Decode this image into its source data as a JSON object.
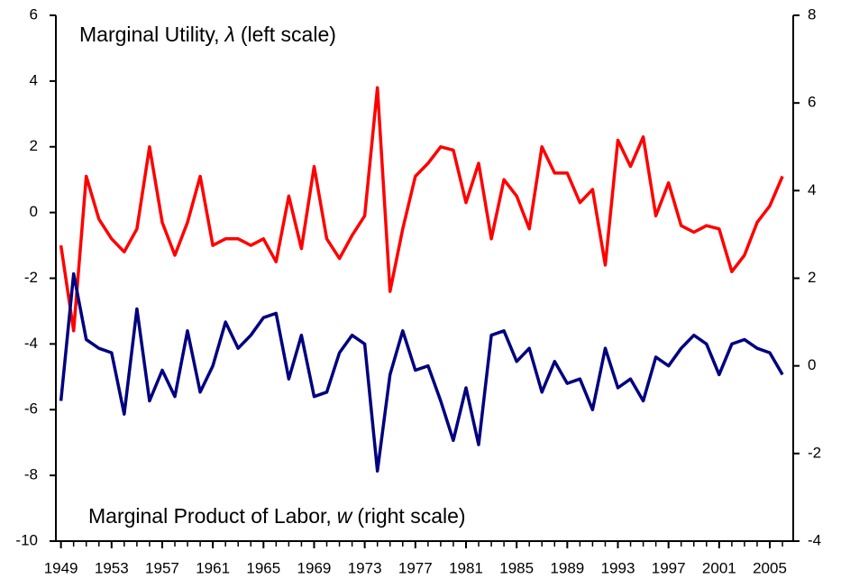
{
  "chart_data": {
    "type": "line",
    "annotations": [
      {
        "text_before": "Marginal Utility,",
        "symbol": "λ",
        "text_after": "(left scale)"
      },
      {
        "text_before": "Marginal Product of Labor,",
        "symbol": "w",
        "text_after": "(right scale)"
      }
    ],
    "x": [
      1949,
      1950,
      1951,
      1952,
      1953,
      1954,
      1955,
      1956,
      1957,
      1958,
      1959,
      1960,
      1961,
      1962,
      1963,
      1964,
      1965,
      1966,
      1967,
      1968,
      1969,
      1970,
      1971,
      1972,
      1973,
      1974,
      1975,
      1976,
      1977,
      1978,
      1979,
      1980,
      1981,
      1982,
      1983,
      1984,
      1985,
      1986,
      1987,
      1988,
      1989,
      1990,
      1991,
      1992,
      1993,
      1994,
      1995,
      1996,
      1997,
      1998,
      1999,
      2000,
      2001,
      2002,
      2003,
      2004,
      2005,
      2006
    ],
    "xlim": [
      1948.6,
      2006.85
    ],
    "xticks": [
      1949,
      1953,
      1957,
      1961,
      1965,
      1969,
      1973,
      1977,
      1981,
      1985,
      1989,
      1993,
      1997,
      2001,
      2005
    ],
    "ylim": [
      -10,
      6
    ],
    "yticks": [
      -10,
      -8,
      -6,
      -4,
      -2,
      0,
      2,
      4,
      6
    ],
    "y2lim": [
      -4,
      8
    ],
    "y2ticks": [
      -4,
      -2,
      0,
      2,
      4,
      6,
      8
    ],
    "grid": false,
    "series": [
      {
        "color": "#ff0000",
        "values": [
          -1.0,
          -3.6,
          1.1,
          -0.2,
          -0.8,
          -1.2,
          -0.5,
          2.0,
          -0.3,
          -1.3,
          -0.3,
          1.1,
          -1.0,
          -0.8,
          -0.8,
          -1.0,
          -0.8,
          -1.5,
          0.5,
          -1.1,
          1.4,
          -0.8,
          -1.4,
          -0.7,
          -0.1,
          3.8,
          -2.4,
          -0.5,
          1.1,
          1.5,
          2.0,
          1.9,
          0.3,
          1.5,
          -0.8,
          1.0,
          0.5,
          -0.5,
          2.0,
          1.2,
          1.2,
          0.3,
          0.7,
          -1.6,
          2.2,
          1.4,
          2.3,
          -0.1,
          0.9,
          -0.4,
          -0.6,
          -0.4,
          -0.5,
          -1.8,
          -1.3,
          -0.3,
          0.2,
          1.1
        ]
      },
      {
        "color": "#000080",
        "axis": "y2",
        "values": [
          -0.8,
          2.1,
          0.6,
          0.4,
          0.3,
          -1.1,
          1.3,
          -0.8,
          -0.1,
          -0.7,
          0.8,
          -0.6,
          0.0,
          1.0,
          0.4,
          0.7,
          1.1,
          1.2,
          -0.3,
          0.7,
          -0.7,
          -0.6,
          0.3,
          0.7,
          0.5,
          -2.4,
          -0.2,
          0.8,
          -0.1,
          0.0,
          -0.8,
          -1.7,
          -0.5,
          -1.8,
          0.7,
          0.8,
          0.1,
          0.4,
          -0.6,
          0.1,
          -0.4,
          -0.3,
          -1.0,
          0.4,
          -0.5,
          -0.3,
          -0.8,
          0.2,
          0.0,
          0.4,
          0.7,
          0.5,
          -0.2,
          0.5,
          0.6,
          0.4,
          0.3,
          -0.2
        ]
      }
    ]
  }
}
